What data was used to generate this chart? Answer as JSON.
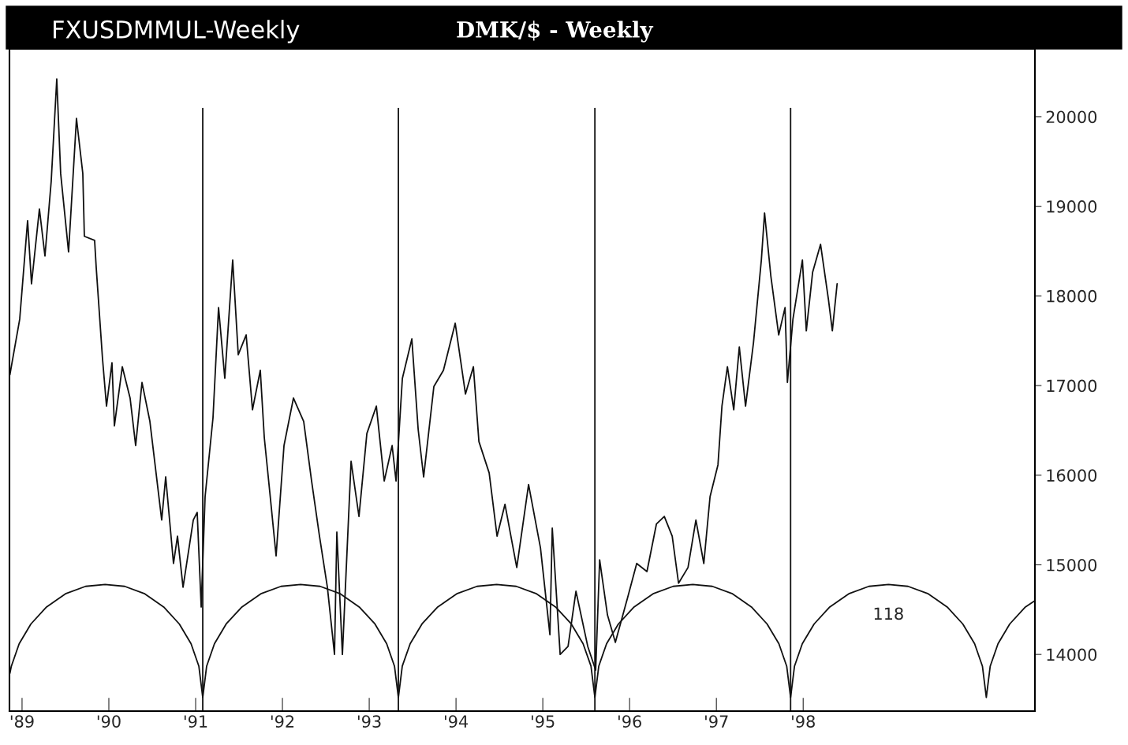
{
  "chart_data": {
    "type": "line",
    "title": "FXUSDMMUL-Weekly",
    "subtitle": "DMK/$ - Weekly",
    "x": [
      1988.86,
      1988.973,
      1989.064,
      1989.109,
      1989.2,
      1989.264,
      1989.336,
      1989.4,
      1989.445,
      1989.536,
      1989.627,
      1989.7,
      1989.718,
      1989.836,
      1989.855,
      1989.927,
      1989.973,
      1990.036,
      1990.064,
      1990.155,
      1990.245,
      1990.309,
      1990.382,
      1990.473,
      1990.609,
      1990.655,
      1990.745,
      1990.791,
      1990.855,
      1990.973,
      1991.018,
      1991.064,
      1991.109,
      1991.2,
      1991.264,
      1991.336,
      1991.427,
      1991.491,
      1991.582,
      1991.655,
      1991.745,
      1991.791,
      1991.855,
      1991.927,
      1992.018,
      1992.127,
      1992.245,
      1992.336,
      1992.427,
      1992.518,
      1992.6,
      1992.627,
      1992.691,
      1992.791,
      1992.882,
      1992.973,
      1993.082,
      1993.173,
      1993.264,
      1993.309,
      1993.382,
      1993.491,
      1993.564,
      1993.627,
      1993.745,
      1993.855,
      1993.991,
      1994.109,
      1994.2,
      1994.264,
      1994.382,
      1994.473,
      1994.564,
      1994.7,
      1994.836,
      1994.973,
      1995.082,
      1995.109,
      1995.2,
      1995.291,
      1995.382,
      1995.518,
      1995.609,
      1995.655,
      1995.745,
      1995.836,
      1995.973,
      1996.082,
      1996.2,
      1996.309,
      1996.4,
      1996.491,
      1996.564,
      1996.673,
      1996.764,
      1996.855,
      1996.927,
      1997.018,
      1997.064,
      1997.127,
      1997.2,
      1997.264,
      1997.336,
      1997.427,
      1997.518,
      1997.555,
      1997.627,
      1997.718,
      1997.791,
      1997.818,
      1997.882,
      1997.991,
      1998.036,
      1998.109,
      1998.2,
      1998.291,
      1998.336,
      1998.391
    ],
    "series": [
      {
        "color": "#111111",
        "values": [
          17120,
          17740,
          18840,
          18135,
          18970,
          18445,
          19280,
          20420,
          19365,
          18490,
          19980,
          19365,
          18665,
          18620,
          18310,
          17300,
          16770,
          17255,
          16550,
          17210,
          16860,
          16330,
          17035,
          16600,
          15500,
          15980,
          15015,
          15320,
          14750,
          15500,
          15585,
          14530,
          15760,
          16640,
          17870,
          17080,
          18400,
          17345,
          17565,
          16730,
          17170,
          16420,
          15805,
          15100,
          16330,
          16860,
          16600,
          15935,
          15320,
          14750,
          14000,
          15365,
          14000,
          16155,
          15540,
          16465,
          16770,
          15935,
          16330,
          15935,
          17080,
          17520,
          16510,
          15980,
          16990,
          17170,
          17695,
          16905,
          17210,
          16375,
          16025,
          15320,
          15675,
          14970,
          15895,
          15190,
          14220,
          15410,
          14000,
          14090,
          14705,
          14090,
          13825,
          15055,
          14440,
          14135,
          14620,
          15015,
          14925,
          15455,
          15540,
          15320,
          14795,
          14970,
          15500,
          15015,
          15760,
          16115,
          16770,
          17210,
          16730,
          17430,
          16770,
          17475,
          18400,
          18925,
          18225,
          17565,
          17870,
          17035,
          17740,
          18400,
          17610,
          18265,
          18575,
          17960,
          17610,
          18135
        ]
      },
      {
        "type": "line",
        "color": "#111111",
        "x": [
          1988.86,
          1988.877,
          1988.967,
          1989.102,
          1989.282,
          1989.507,
          1989.732,
          1989.957,
          1990.182,
          1990.407,
          1990.632,
          1990.812,
          1990.947,
          1991.037,
          1991.082,
          1991.127,
          1991.217,
          1991.352,
          1991.533,
          1991.758,
          1991.984,
          1992.209,
          1992.434,
          1992.66,
          1992.885,
          1993.066,
          1993.201,
          1993.291,
          1993.336,
          1993.381,
          1993.472,
          1993.608,
          1993.789,
          1994.015,
          1994.242,
          1994.468,
          1994.694,
          1994.921,
          1995.147,
          1995.328,
          1995.464,
          1995.555,
          1995.6,
          1995.645,
          1995.735,
          1995.871,
          1996.051,
          1996.277,
          1996.502,
          1996.728,
          1996.953,
          1997.179,
          1997.404,
          1997.584,
          1997.72,
          1997.81,
          1997.855,
          1997.9,
          1997.99,
          1998.126,
          1998.306,
          1998.532,
          1998.757,
          1998.983,
          1999.208,
          1999.434,
          1999.659,
          1999.839,
          1999.975,
          2000.065,
          2000.11,
          2000.155,
          2000.245,
          2000.38,
          2000.56,
          2000.67
        ],
        "values": [
          13790,
          13870,
          14120,
          14340,
          14530,
          14680,
          14760,
          14780,
          14760,
          14680,
          14530,
          14340,
          14120,
          13870,
          13520,
          13870,
          14120,
          14340,
          14530,
          14680,
          14760,
          14780,
          14760,
          14680,
          14530,
          14340,
          14120,
          13870,
          13520,
          13870,
          14120,
          14340,
          14530,
          14680,
          14760,
          14780,
          14760,
          14680,
          14530,
          14340,
          14120,
          13870,
          13520,
          13870,
          14120,
          14340,
          14530,
          14680,
          14760,
          14780,
          14760,
          14680,
          14530,
          14340,
          14120,
          13870,
          13520,
          13870,
          14120,
          14340,
          14530,
          14680,
          14760,
          14780,
          14760,
          14680,
          14530,
          14340,
          14120,
          13870,
          13520,
          13870,
          14120,
          14340,
          14530,
          14600
        ]
      }
    ],
    "xlim": [
      1988.855,
      2000.67
    ],
    "ylim": [
      13368,
      20756
    ],
    "xticks": [
      {
        "value": 1989,
        "label": "'89"
      },
      {
        "value": 1990,
        "label": "'90"
      },
      {
        "value": 1991,
        "label": "'91"
      },
      {
        "value": 1992,
        "label": "'92"
      },
      {
        "value": 1993,
        "label": "'93"
      },
      {
        "value": 1994,
        "label": "'94"
      },
      {
        "value": 1995,
        "label": "'95"
      },
      {
        "value": 1996,
        "label": "'96"
      },
      {
        "value": 1997,
        "label": "'97"
      },
      {
        "value": 1998,
        "label": "'98"
      }
    ],
    "yticks": [
      14000,
      15000,
      16000,
      17000,
      18000,
      19000,
      20000
    ],
    "ref_lines": [
      {
        "axis": "x",
        "value": 1991.082,
        "color": "#111111"
      },
      {
        "axis": "x",
        "value": 1993.336,
        "color": "#111111"
      },
      {
        "axis": "x",
        "value": 1995.6,
        "color": "#111111"
      },
      {
        "axis": "x",
        "value": 1997.855,
        "color": "#111111"
      }
    ],
    "annotations": [
      "118"
    ],
    "grid": false,
    "legend": false
  }
}
